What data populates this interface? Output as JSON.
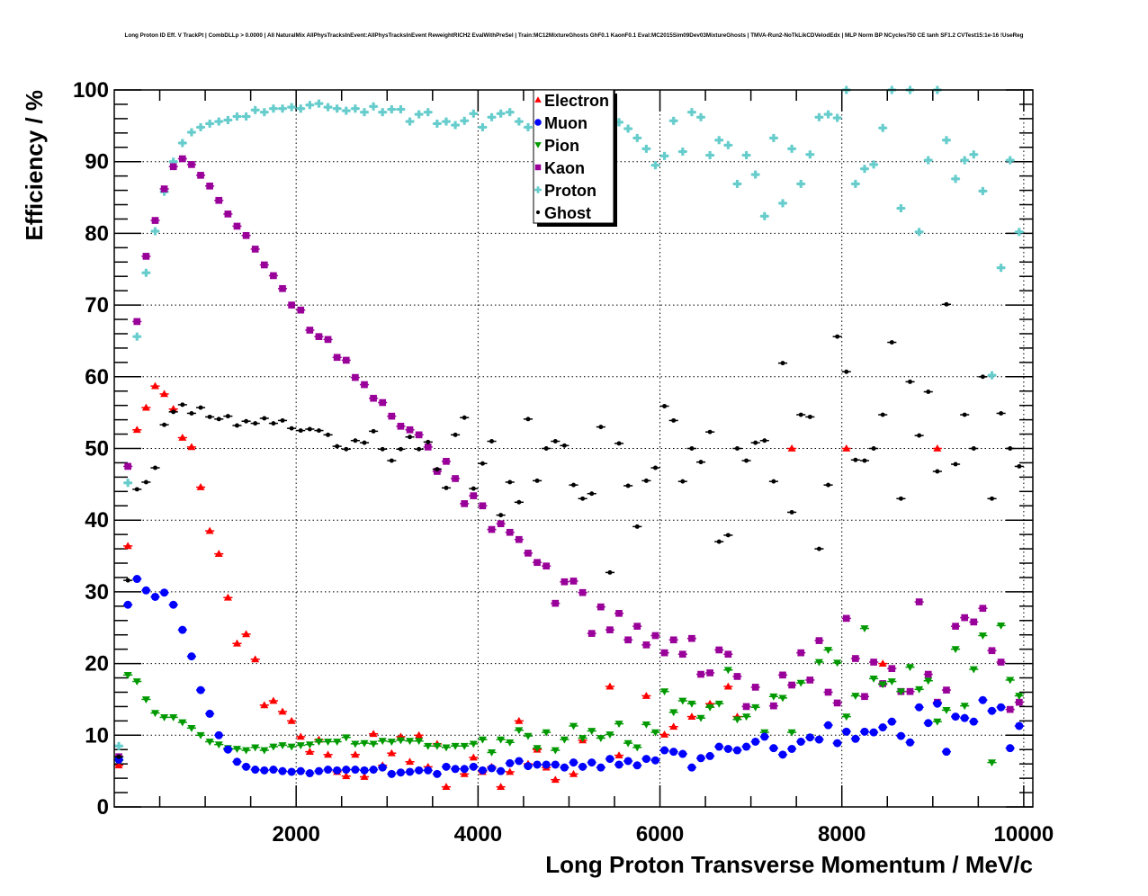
{
  "chart_data": {
    "type": "scatter",
    "title": "Long Proton ID Eff. V TrackPt | CombDLLp > 0.0000 | All NaturalMix AllPhysTracksInEvent:AllPhysTracksInEvent ReweightRICH2 EvalWithPreSel | Train:MC12MixtureGhosts GhF0.1 KaonF0.1 Eval:MC2015Sim09Dev03MixtureGhosts | TMVA-Run2-NoTkLikCDVelodEdx | MLP Norm BP NCycles750 CE tanh SF1.2 CVTest15:1e-16 !UseReg",
    "xlabel": "Long Proton Transverse Momentum / MeV/c",
    "ylabel": "Efficiency / %",
    "xlim": [
      0,
      10100
    ],
    "ylim": [
      0,
      100
    ],
    "xticks": [
      "2000",
      "4000",
      "6000",
      "8000",
      "10000"
    ],
    "yticks": [
      "0",
      "10",
      "20",
      "30",
      "40",
      "50",
      "60",
      "70",
      "80",
      "90",
      "100"
    ],
    "grid": true,
    "legend_position": "top-center",
    "bin_width": 100,
    "x_start": 50,
    "series": [
      {
        "name": "Electron",
        "color": "#ff0000",
        "marker": "triangle-up",
        "values": [
          5.8,
          36.4,
          52.6,
          55.7,
          58.7,
          57.6,
          55.5,
          51.5,
          50.2,
          44.6,
          38.5,
          35.3,
          29.2,
          22.8,
          24.1,
          20.6,
          14.2,
          14.8,
          13.3,
          12.0,
          9.8,
          7.7,
          9.4,
          7.3,
          4.9,
          4.3,
          7.3,
          4.2,
          10.2,
          5.8,
          7.5,
          9.8,
          6.3,
          10.0,
          5.6,
          8.8,
          2.8,
          null,
          4.6,
          6.9,
          4.9,
          5.6,
          2.8,
          4.9,
          12.0,
          6.0,
          8.0,
          5.5,
          3.8,
          null,
          4.6,
          9.3,
          null,
          null,
          16.8,
          7.2,
          null,
          null,
          15.5,
          null,
          10.1,
          11.2,
          null,
          12.6,
          null,
          14.4,
          null,
          16.8,
          12.6,
          null,
          null,
          null,
          null,
          null,
          50,
          null,
          null,
          null,
          null,
          null,
          50,
          null,
          null,
          null,
          20.0,
          null,
          null,
          null,
          null,
          null,
          50,
          null,
          null,
          null,
          null,
          null,
          null,
          null,
          null,
          null
        ]
      },
      {
        "name": "Muon",
        "color": "#0000ff",
        "marker": "circle",
        "values": [
          6.6,
          28.2,
          31.8,
          30.2,
          29.3,
          29.9,
          28.2,
          24.7,
          21.0,
          16.3,
          13.0,
          10.0,
          8.0,
          6.3,
          5.6,
          5.2,
          5.1,
          5.2,
          5.0,
          4.9,
          5.0,
          4.7,
          5.0,
          5.2,
          5.1,
          5.2,
          5.2,
          5.1,
          5.2,
          5.5,
          4.6,
          4.8,
          4.9,
          5.1,
          5.1,
          4.6,
          5.6,
          5.3,
          5.3,
          5.6,
          5.1,
          5.4,
          5.0,
          6.1,
          6.4,
          5.7,
          5.9,
          5.9,
          5.9,
          5.5,
          6.2,
          5.6,
          6.2,
          5.5,
          6.7,
          5.9,
          6.4,
          5.8,
          6.7,
          6.5,
          7.9,
          7.7,
          7.4,
          5.5,
          6.8,
          7.1,
          8.4,
          8.1,
          7.9,
          8.4,
          9.1,
          9.8,
          8.2,
          7.3,
          8.1,
          9.1,
          9.7,
          9.4,
          11.4,
          8.9,
          10.5,
          9.5,
          10.5,
          10.4,
          11.1,
          11.9,
          9.9,
          9.0,
          13.9,
          11.7,
          14.4,
          7.7,
          12.6,
          12.4,
          11.9,
          14.9,
          13.4,
          13.9,
          8.2,
          11.3
        ]
      },
      {
        "name": "Pion",
        "color": "#009900",
        "marker": "triangle-down",
        "values": [
          6.5,
          18.4,
          17.5,
          15.0,
          13.1,
          12.5,
          12.5,
          11.8,
          11.0,
          10.0,
          9.1,
          8.7,
          8.2,
          8.1,
          7.9,
          8.3,
          7.9,
          8.4,
          8.6,
          8.4,
          8.6,
          8.7,
          9.1,
          9.1,
          9.1,
          9.7,
          8.8,
          8.9,
          8.8,
          9.2,
          9.1,
          9.3,
          9.2,
          9.2,
          8.5,
          8.5,
          8.3,
          8.5,
          8.5,
          8.8,
          9.4,
          7.6,
          9.4,
          9.0,
          10.7,
          9.9,
          8.2,
          10.4,
          7.9,
          9.4,
          11.3,
          9.6,
          10.6,
          9.6,
          10.1,
          11.6,
          8.9,
          8.3,
          11.5,
          10.4,
          16.1,
          13.2,
          14.8,
          14.4,
          12.4,
          13.9,
          14.4,
          19.1,
          12.2,
          12.6,
          13.9,
          10.4,
          15.4,
          15.2,
          10.4,
          17.3,
          9.7,
          20.2,
          21.9,
          20.1,
          12.6,
          15.5,
          24.9,
          17.9,
          17.1,
          17.5,
          16.1,
          19.5,
          16.4,
          17.6,
          11.9,
          13.5,
          22.0,
          14.1,
          19.2,
          23.9,
          6.2,
          25.3,
          17.7,
          15.5
        ]
      },
      {
        "name": "Kaon",
        "color": "#990099",
        "marker": "square",
        "values": [
          7.0,
          47.5,
          67.7,
          76.8,
          81.8,
          86.2,
          89.3,
          90.4,
          89.6,
          88.1,
          86.6,
          84.6,
          82.7,
          81.0,
          79.7,
          77.8,
          75.6,
          74.1,
          72.3,
          70.0,
          69.3,
          66.5,
          65.6,
          65.2,
          62.7,
          62.3,
          59.9,
          58.9,
          57.0,
          56.4,
          54.5,
          53.1,
          52.6,
          51.9,
          50.2,
          46.8,
          48.2,
          45.8,
          42.3,
          43.4,
          42.0,
          38.7,
          39.5,
          38.3,
          37.3,
          35.4,
          34.1,
          33.6,
          28.4,
          31.4,
          31.5,
          29.9,
          24.2,
          27.9,
          24.7,
          27.0,
          23.3,
          25.2,
          22.6,
          23.9,
          21.5,
          23.3,
          21.3,
          23.5,
          18.5,
          18.7,
          21.9,
          21.3,
          18.2,
          14.0,
          16.7,
          null,
          14.1,
          18.4,
          17.0,
          21.5,
          17.7,
          23.2,
          16.0,
          14.5,
          26.3,
          20.7,
          15.4,
          20.2,
          17.2,
          19.3,
          16.1,
          16.1,
          28.6,
          18.5,
          14.6,
          16.3,
          25.2,
          26.4,
          25.8,
          27.7,
          21.8,
          20.2,
          13.6,
          14.6
        ]
      },
      {
        "name": "Proton",
        "color": "#66cccc",
        "marker": "plus",
        "values": [
          8.5,
          45.2,
          65.6,
          74.5,
          80.3,
          85.8,
          90.0,
          92.6,
          94.1,
          94.8,
          95.3,
          95.6,
          95.8,
          96.3,
          96.3,
          97.2,
          96.9,
          97.4,
          97.4,
          97.6,
          97.4,
          97.9,
          98.1,
          97.6,
          97.4,
          97.1,
          97.4,
          96.9,
          97.7,
          96.9,
          97.3,
          97.3,
          95.6,
          96.6,
          96.9,
          95.3,
          95.6,
          95.1,
          95.7,
          96.7,
          94.8,
          96.2,
          96.7,
          96.9,
          95.6,
          94.8,
          null,
          null,
          null,
          null,
          null,
          null,
          null,
          null,
          95.8,
          95.5,
          94.6,
          93.3,
          91.8,
          89.5,
          90.8,
          95.7,
          91.4,
          96.9,
          96.2,
          90.9,
          93.0,
          92.3,
          86.9,
          90.9,
          88.2,
          82.4,
          93.3,
          84.2,
          91.8,
          86.9,
          91.0,
          96.2,
          96.6,
          96.1,
          100,
          86.9,
          89.0,
          89.6,
          94.7,
          100,
          83.5,
          100,
          80.2,
          90.2,
          100,
          93.0,
          87.6,
          90.2,
          91.0,
          85.9,
          60.2,
          75.2,
          90.2,
          80.2
        ]
      },
      {
        "name": "Ghost",
        "color": "#000000",
        "marker": "dot",
        "values": [
          7.0,
          31.6,
          44.3,
          45.3,
          47.3,
          53.3,
          55.1,
          56.1,
          54.9,
          55.7,
          54.4,
          54.1,
          54.5,
          53.2,
          53.8,
          53.5,
          54.2,
          53.5,
          53.9,
          52.8,
          52.5,
          52.7,
          52.5,
          51.9,
          50.3,
          49.9,
          51.1,
          50.8,
          52.4,
          49.9,
          48.3,
          49.9,
          51.6,
          49.9,
          50.9,
          47.1,
          44.5,
          51.9,
          54.3,
          44.4,
          47.9,
          51.0,
          40.7,
          45.3,
          42.5,
          54.1,
          45.5,
          50.0,
          51.0,
          50.4,
          44.9,
          43.0,
          43.7,
          53.0,
          32.7,
          50.7,
          44.8,
          39.1,
          45.5,
          47.3,
          55.9,
          53.9,
          45.4,
          50.0,
          48.1,
          52.3,
          37.0,
          37.9,
          50.0,
          48.3,
          50.8,
          51.1,
          45.4,
          61.9,
          41.1,
          54.7,
          54.4,
          36.0,
          44.9,
          65.6,
          60.7,
          48.4,
          48.3,
          50.0,
          54.7,
          64.8,
          43.0,
          59.3,
          51.8,
          57.9,
          46.8,
          70.1,
          47.8,
          54.7,
          50.0,
          60.0,
          43.0,
          54.9,
          50.0,
          47.5
        ]
      }
    ]
  }
}
